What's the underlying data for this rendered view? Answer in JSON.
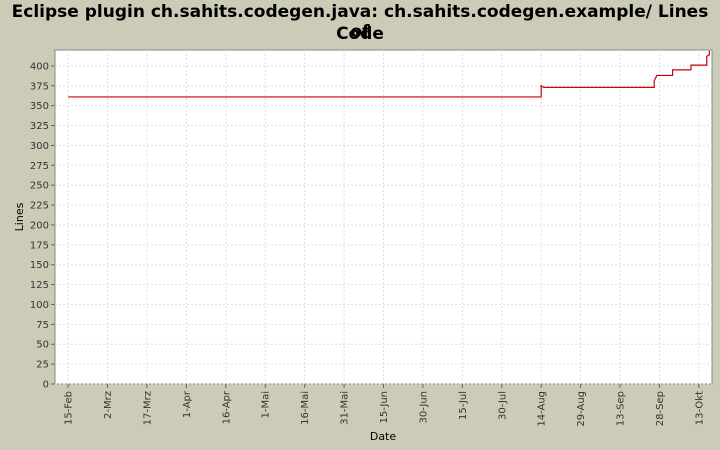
{
  "chart_data": {
    "type": "line",
    "title_lines": [
      "Eclipse plugin ch.sahits.codegen.java: ch.sahits.codegen.example/ Lines of",
      "Code"
    ],
    "xlabel": "Date",
    "ylabel": "Lines",
    "ylim": [
      0,
      420
    ],
    "y_ticks": [
      0,
      25,
      50,
      75,
      100,
      125,
      150,
      175,
      200,
      225,
      250,
      275,
      300,
      325,
      350,
      375,
      400
    ],
    "x_ticks": [
      {
        "date": "2009-02-15",
        "label": "15-Feb"
      },
      {
        "date": "2009-03-02",
        "label": "2-Mrz"
      },
      {
        "date": "2009-03-17",
        "label": "17-Mrz"
      },
      {
        "date": "2009-04-01",
        "label": "1-Apr"
      },
      {
        "date": "2009-04-16",
        "label": "16-Apr"
      },
      {
        "date": "2009-05-01",
        "label": "1-Mai"
      },
      {
        "date": "2009-05-16",
        "label": "16-Mai"
      },
      {
        "date": "2009-05-31",
        "label": "31-Mai"
      },
      {
        "date": "2009-06-15",
        "label": "15-Jun"
      },
      {
        "date": "2009-06-30",
        "label": "30-Jun"
      },
      {
        "date": "2009-07-15",
        "label": "15-Jul"
      },
      {
        "date": "2009-07-30",
        "label": "30-Jul"
      },
      {
        "date": "2009-08-14",
        "label": "14-Aug"
      },
      {
        "date": "2009-08-29",
        "label": "29-Aug"
      },
      {
        "date": "2009-09-13",
        "label": "13-Sep"
      },
      {
        "date": "2009-09-28",
        "label": "28-Sep"
      },
      {
        "date": "2009-10-13",
        "label": "13-Okt"
      }
    ],
    "xlim": [
      "2009-02-10",
      "2009-10-18"
    ],
    "grid": true,
    "line_color": "#cc0000",
    "series": [
      {
        "points": [
          {
            "x": "2009-02-15",
            "y": 361
          },
          {
            "x": "2009-08-14",
            "y": 361
          },
          {
            "x": "2009-08-14",
            "y": 375
          },
          {
            "x": "2009-08-15",
            "y": 373
          },
          {
            "x": "2009-09-26",
            "y": 373
          },
          {
            "x": "2009-09-26",
            "y": 381
          },
          {
            "x": "2009-09-27",
            "y": 388
          },
          {
            "x": "2009-10-03",
            "y": 388
          },
          {
            "x": "2009-10-03",
            "y": 395
          },
          {
            "x": "2009-10-10",
            "y": 395
          },
          {
            "x": "2009-10-10",
            "y": 401
          },
          {
            "x": "2009-10-16",
            "y": 401
          },
          {
            "x": "2009-10-16",
            "y": 412
          },
          {
            "x": "2009-10-17",
            "y": 414
          },
          {
            "x": "2009-10-17",
            "y": 419
          }
        ]
      }
    ]
  }
}
